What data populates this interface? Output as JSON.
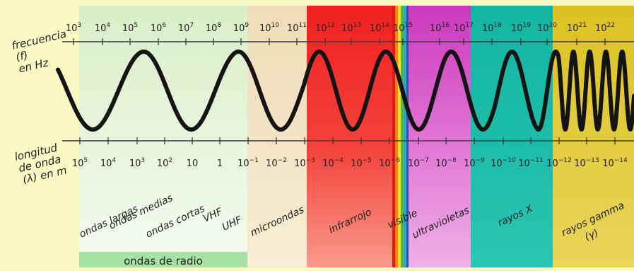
{
  "frequency_axis": {
    "label_lines": [
      "frecuencia",
      "(f)",
      "en Hz"
    ],
    "ticks": [
      {
        "base": "10",
        "exp": "3"
      },
      {
        "base": "10",
        "exp": "4"
      },
      {
        "base": "10",
        "exp": "5"
      },
      {
        "base": "10",
        "exp": "6"
      },
      {
        "base": "10",
        "exp": "7"
      },
      {
        "base": "10",
        "exp": "8"
      },
      {
        "base": "10",
        "exp": "9"
      },
      {
        "base": "10",
        "exp": "10"
      },
      {
        "base": "10",
        "exp": "11"
      },
      {
        "base": "10",
        "exp": "12"
      },
      {
        "base": "10",
        "exp": "13"
      },
      {
        "base": "10",
        "exp": "14"
      },
      {
        "base": "10",
        "exp": "15"
      },
      {
        "base": "10",
        "exp": "16"
      },
      {
        "base": "10",
        "exp": "17"
      },
      {
        "base": "10",
        "exp": "18"
      },
      {
        "base": "10",
        "exp": "19"
      },
      {
        "base": "10",
        "exp": "20"
      },
      {
        "base": "10",
        "exp": "21"
      },
      {
        "base": "10",
        "exp": "22"
      }
    ]
  },
  "wavelength_axis": {
    "label_lines": [
      "longitud",
      "de onda",
      "(λ) en m"
    ],
    "ticks": [
      {
        "base": "10",
        "exp": "5"
      },
      {
        "base": "10",
        "exp": "4"
      },
      {
        "base": "10",
        "exp": "3"
      },
      {
        "base": "10",
        "exp": "2"
      },
      {
        "base": "10",
        "exp": ""
      },
      {
        "base": "1",
        "exp": ""
      },
      {
        "base": "10",
        "exp": "−1"
      },
      {
        "base": "10",
        "exp": "−2"
      },
      {
        "base": "10",
        "exp": "−3"
      },
      {
        "base": "10",
        "exp": "−4"
      },
      {
        "base": "10",
        "exp": "−5"
      },
      {
        "base": "10",
        "exp": "−6"
      },
      {
        "base": "10",
        "exp": "−7"
      },
      {
        "base": "10",
        "exp": "−8"
      },
      {
        "base": "10",
        "exp": "−9"
      },
      {
        "base": "10",
        "exp": "−10"
      },
      {
        "base": "10",
        "exp": "−11"
      },
      {
        "base": "10",
        "exp": "−12"
      },
      {
        "base": "10",
        "exp": "−13"
      },
      {
        "base": "10",
        "exp": "−14"
      }
    ]
  },
  "bands": [
    {
      "name": "ondas-largas",
      "lines": [
        "ondas largas"
      ]
    },
    {
      "name": "ondas-medias",
      "lines": [
        "ondas medias"
      ]
    },
    {
      "name": "ondas-cortas",
      "lines": [
        "ondas cortas"
      ]
    },
    {
      "name": "vhf",
      "lines": [
        "VHF"
      ]
    },
    {
      "name": "uhf",
      "lines": [
        "UHF"
      ]
    },
    {
      "name": "microondas",
      "lines": [
        "microondas"
      ]
    },
    {
      "name": "infrarrojo",
      "lines": [
        "infrarrojo"
      ]
    },
    {
      "name": "visible",
      "lines": [
        "visible"
      ]
    },
    {
      "name": "ultravioletas",
      "lines": [
        "ultravioletas"
      ]
    },
    {
      "name": "rayos-x",
      "lines": [
        "rayos X"
      ]
    },
    {
      "name": "rayos-gamma",
      "lines": [
        "rayos gamma",
        "(γ)"
      ]
    }
  ],
  "group_label": "ondas de radio",
  "colors": {
    "background": "#fdf9c4",
    "radio": "#e3f5d8",
    "radio_group": "#a6e2a5",
    "microwave": "#eed9b4",
    "infrared": "#ef2a2b",
    "ultraviolet": "#d23fc0",
    "xray": "#15b9a7",
    "gamma": "#dcc325",
    "wave": "#141414"
  }
}
